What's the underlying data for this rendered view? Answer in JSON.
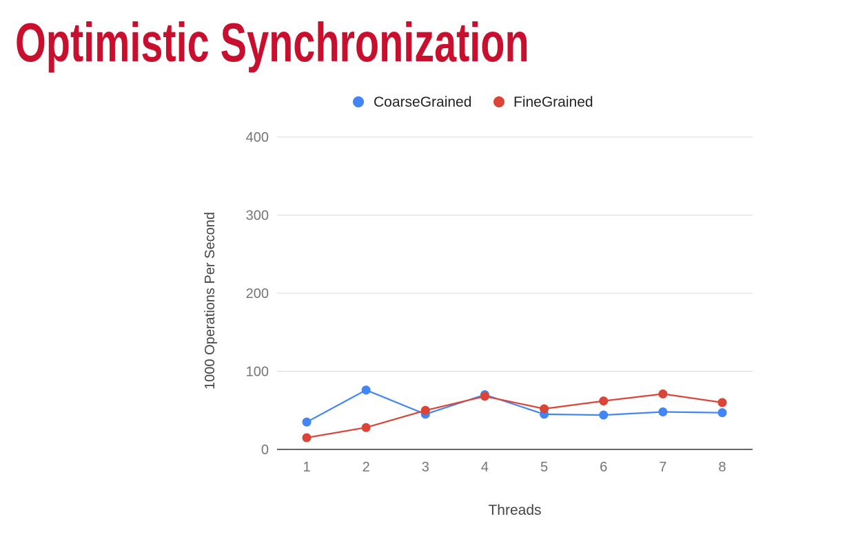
{
  "slide": {
    "title": "Optimistic Synchronization"
  },
  "colors": {
    "title": "#c8102e",
    "series": [
      "#4285f4",
      "#db4437"
    ],
    "grid": "#d9d9d9",
    "axis": "#333333",
    "tick_text": "#757575",
    "axis_title_text": "#444444"
  },
  "chart_data": {
    "type": "line",
    "title": "",
    "xlabel": "Threads",
    "ylabel": "1000 Operations Per Second",
    "x": [
      "1",
      "2",
      "3",
      "4",
      "5",
      "6",
      "7",
      "8"
    ],
    "ylim": [
      0,
      400
    ],
    "yticks": [
      0,
      100,
      200,
      300,
      400
    ],
    "grid": true,
    "legend": "top",
    "series": [
      {
        "name": "CoarseGrained",
        "values": [
          35,
          76,
          45,
          70,
          45,
          44,
          48,
          47
        ]
      },
      {
        "name": "FineGrained",
        "values": [
          15,
          28,
          50,
          68,
          52,
          62,
          71,
          60
        ]
      }
    ]
  }
}
